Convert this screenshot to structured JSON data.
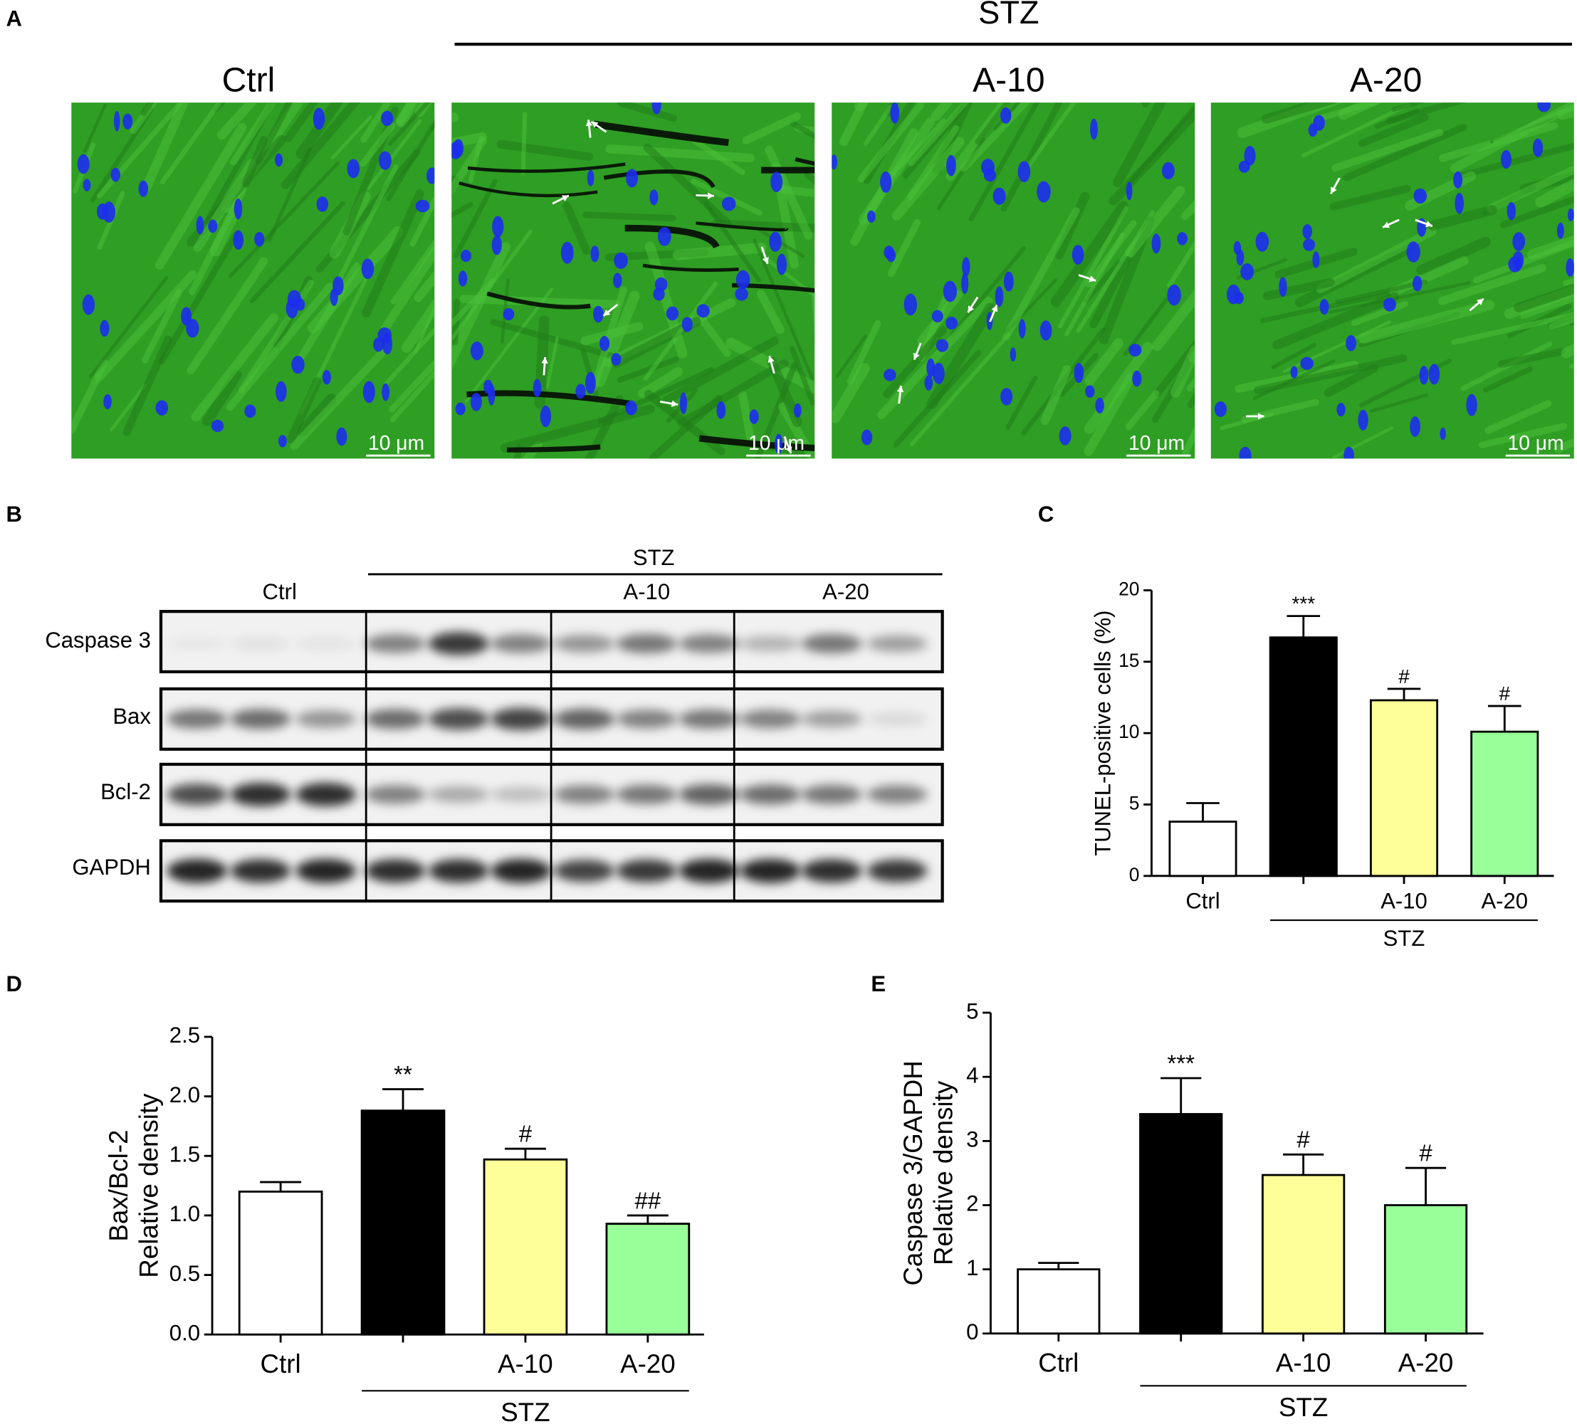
{
  "figure": {
    "panel_labels": [
      "A",
      "B",
      "C",
      "D",
      "E"
    ]
  },
  "micrographs": {
    "group_label": "STZ",
    "titles": [
      "Ctrl",
      null,
      "A-10",
      "A-20"
    ],
    "scale_bar": "10 μm"
  },
  "blot": {
    "group_label": "STZ",
    "columns": [
      "Ctrl",
      "A-10",
      "A-20"
    ],
    "rows": [
      "Caspase 3",
      "Bax",
      "Bcl-2",
      "GAPDH"
    ]
  },
  "chart_data": [
    {
      "type": "bar",
      "y_label": [
        "TUNEL-positive cells (%)"
      ],
      "categories": [
        "Ctrl",
        null,
        "A-10",
        "A-20"
      ],
      "group_label": "STZ",
      "values": [
        3.8,
        16.7,
        12.3,
        10.1
      ],
      "errors": [
        1.3,
        1.5,
        0.8,
        1.8
      ],
      "annotations": [
        null,
        "***",
        "#",
        "#"
      ],
      "colors": [
        "#ffffff",
        "#000000",
        "#ffff99",
        "#99ff99"
      ],
      "ylim": [
        0,
        20
      ],
      "yticks": [
        0,
        5,
        10,
        15,
        20
      ]
    },
    {
      "type": "bar",
      "y_label": [
        "Bax/Bcl-2",
        "Relative density"
      ],
      "categories": [
        "Ctrl",
        null,
        "A-10",
        "A-20"
      ],
      "group_label": "STZ",
      "values": [
        1.2,
        1.88,
        1.47,
        0.93
      ],
      "errors": [
        0.08,
        0.18,
        0.09,
        0.07
      ],
      "annotations": [
        null,
        "**",
        "#",
        "##"
      ],
      "colors": [
        "#ffffff",
        "#000000",
        "#ffff99",
        "#99ff99"
      ],
      "ylim": [
        0,
        2.5
      ],
      "yticks": [
        {
          "value": 0,
          "label": "0.0"
        },
        0.5,
        {
          "value": 1,
          "label": "1.0"
        },
        1.5,
        {
          "value": 2,
          "label": "2.0"
        },
        2.5
      ]
    },
    {
      "type": "bar",
      "y_label": [
        "Caspase 3/GAPDH",
        "Relative density"
      ],
      "categories": [
        "Ctrl",
        null,
        "A-10",
        "A-20"
      ],
      "group_label": "STZ",
      "values": [
        1.0,
        3.42,
        2.47,
        2.0
      ],
      "errors": [
        0.1,
        0.56,
        0.32,
        0.58
      ],
      "annotations": [
        null,
        "***",
        "#",
        "#"
      ],
      "colors": [
        "#ffffff",
        "#000000",
        "#ffff99",
        "#99ff99"
      ],
      "ylim": [
        0,
        5
      ],
      "yticks": [
        0,
        1,
        2,
        3,
        4,
        5
      ]
    }
  ]
}
